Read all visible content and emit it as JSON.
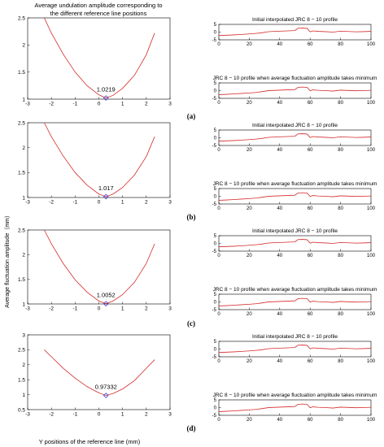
{
  "figure": {
    "title_line1": "Average undulation amplitude corresponding to",
    "title_line2": "the different reference line positions",
    "ylabel": "Average fluctuation amplitude（mm）",
    "xlabel": "Y positions of the reference line (mm)",
    "profile_top_title": "Initial interpolated JRC 8 − 10 profile",
    "profile_bottom_title": "JRC 8 − 10 profile when average fluctuation amplitude takes minimum"
  },
  "colors": {
    "curve": "#d42a2a",
    "marker": "#2b2bd4",
    "axis": "#000000"
  },
  "chart_data": [
    {
      "id": "a",
      "panel_label": "(a)",
      "type": "line",
      "x": [
        -2.3,
        -2.0,
        -1.5,
        -1.0,
        -0.5,
        0.0,
        0.3,
        0.6,
        1.0,
        1.5,
        2.0,
        2.35
      ],
      "y": [
        2.5,
        2.22,
        1.83,
        1.5,
        1.25,
        1.08,
        1.0219,
        1.07,
        1.2,
        1.44,
        1.82,
        2.22
      ],
      "min_point": {
        "x": 0.3,
        "y": 1.0219,
        "label": "1.0219"
      },
      "xlim": [
        -3,
        3
      ],
      "ylim": [
        1,
        2.5
      ],
      "xticks": [
        "-3",
        "-2",
        "-1",
        "0",
        "1",
        "2",
        "3"
      ],
      "yticks": [
        "1",
        "1.5",
        "2",
        "2.5"
      ]
    },
    {
      "id": "b",
      "panel_label": "(b)",
      "type": "line",
      "x": [
        -2.3,
        -2.0,
        -1.5,
        -1.0,
        -0.5,
        0.0,
        0.3,
        0.6,
        1.0,
        1.5,
        2.0,
        2.35
      ],
      "y": [
        2.5,
        2.22,
        1.83,
        1.5,
        1.25,
        1.07,
        1.017,
        1.07,
        1.2,
        1.45,
        1.82,
        2.22
      ],
      "min_point": {
        "x": 0.3,
        "y": 1.017,
        "label": "1.017"
      },
      "xlim": [
        -3,
        3
      ],
      "ylim": [
        1,
        2.5
      ],
      "xticks": [
        "-3",
        "-2",
        "-1",
        "0",
        "1",
        "2",
        "3"
      ],
      "yticks": [
        "1",
        "1.5",
        "2",
        "2.5"
      ]
    },
    {
      "id": "c",
      "panel_label": "(c)",
      "type": "line",
      "x": [
        -2.3,
        -2.0,
        -1.5,
        -1.0,
        -0.5,
        0.0,
        0.3,
        0.6,
        1.0,
        1.5,
        2.0,
        2.35
      ],
      "y": [
        2.5,
        2.22,
        1.82,
        1.49,
        1.24,
        1.06,
        1.0052,
        1.06,
        1.19,
        1.44,
        1.82,
        2.22
      ],
      "min_point": {
        "x": 0.3,
        "y": 1.0052,
        "label": "1.0052"
      },
      "xlim": [
        -3,
        3
      ],
      "ylim": [
        1,
        2.5
      ],
      "xticks": [
        "-3",
        "-2",
        "-1",
        "0",
        "1",
        "2",
        "3"
      ],
      "yticks": [
        "1",
        "1.5",
        "2",
        "2.5"
      ]
    },
    {
      "id": "d",
      "panel_label": "(d)",
      "type": "line",
      "x": [
        -2.3,
        -2.0,
        -1.5,
        -1.0,
        -0.5,
        0.0,
        0.3,
        0.6,
        1.0,
        1.5,
        2.0,
        2.35
      ],
      "y": [
        2.5,
        2.27,
        1.88,
        1.55,
        1.27,
        1.06,
        0.97332,
        1.04,
        1.19,
        1.47,
        1.88,
        2.17
      ],
      "min_point": {
        "x": 0.3,
        "y": 0.97332,
        "label": "0.97332"
      },
      "xlim": [
        -3,
        3
      ],
      "ylim": [
        0.5,
        3
      ],
      "xticks": [
        "-3",
        "-2",
        "-1",
        "0",
        "1",
        "2",
        "3"
      ],
      "yticks": [
        "0.5",
        "1",
        "1.5",
        "2",
        "2.5",
        "3"
      ]
    },
    {
      "id": "profiles",
      "type": "line",
      "xlim": [
        0,
        100
      ],
      "ylim": [
        -5,
        5
      ],
      "xticks": [
        "0",
        "20",
        "40",
        "60",
        "80",
        "100"
      ],
      "yticks": [
        "-5",
        "0",
        "5"
      ],
      "x": [
        0,
        5,
        10,
        15,
        20,
        25,
        28,
        32,
        35,
        40,
        45,
        50,
        52,
        55,
        58,
        60,
        62,
        65,
        70,
        75,
        80,
        85,
        90,
        95,
        100
      ],
      "initial_y": [
        -2.2,
        -2.0,
        -1.8,
        -1.5,
        -1.2,
        -0.8,
        -0.5,
        0.2,
        0.4,
        0.6,
        0.8,
        1.0,
        2.5,
        2.6,
        2.4,
        0.2,
        0.8,
        0.5,
        0.3,
        0.0,
        0.6,
        0.4,
        0.2,
        0.3,
        0.5
      ],
      "minimum_y": [
        -2.6,
        -2.4,
        -2.1,
        -1.8,
        -1.5,
        -1.1,
        -0.7,
        -0.1,
        0.1,
        0.3,
        0.5,
        0.7,
        2.1,
        2.3,
        2.1,
        -0.1,
        0.5,
        0.2,
        0.0,
        -0.3,
        0.3,
        0.1,
        -0.1,
        0.0,
        0.2
      ]
    }
  ]
}
